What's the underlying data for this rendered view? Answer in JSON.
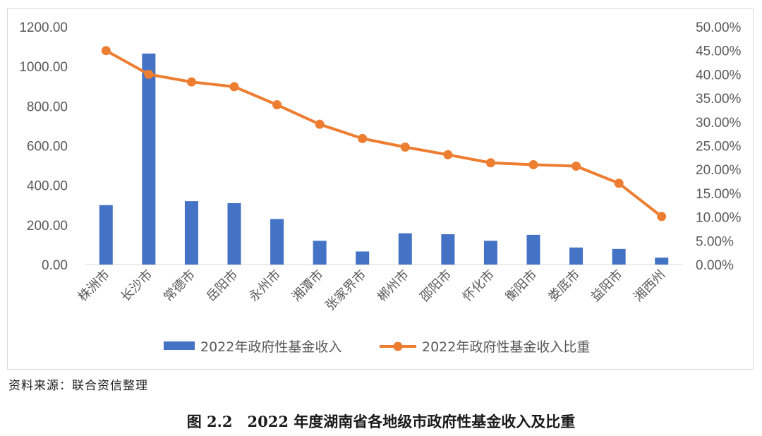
{
  "source_note": "资料来源：联合资信整理",
  "figure_caption": "图 2.2　2022 年度湖南省各地级市政府性基金收入及比重",
  "colors": {
    "bar": "#4472c4",
    "line": "#ed7d31",
    "grid": "#d9d9d9"
  },
  "chart_data": {
    "type": "bar",
    "title": "",
    "categories": [
      "株洲市",
      "长沙市",
      "常德市",
      "岳阳市",
      "永州市",
      "湘潭市",
      "张家界市",
      "郴州市",
      "邵阳市",
      "怀化市",
      "衡阳市",
      "娄底市",
      "益阳市",
      "湘西州"
    ],
    "series": [
      {
        "name": "2022年政府性基金收入",
        "type": "bar",
        "axis": "left",
        "values": [
          300,
          1065,
          320,
          310,
          230,
          120,
          66,
          158,
          153,
          120,
          150,
          86,
          79,
          35
        ]
      },
      {
        "name": "2022年政府性基金收入比重",
        "type": "line",
        "axis": "right",
        "values": [
          45.0,
          40.0,
          38.4,
          37.4,
          33.6,
          29.5,
          26.5,
          24.7,
          23.1,
          21.4,
          21.0,
          20.7,
          17.1,
          10.1
        ]
      }
    ],
    "y_left": {
      "min": 0,
      "max": 1200,
      "step": 200,
      "ticks": [
        "0.00",
        "200.00",
        "400.00",
        "600.00",
        "800.00",
        "1000.00",
        "1200.00"
      ]
    },
    "y_right": {
      "min": 0,
      "max": 50,
      "step": 5,
      "ticks": [
        "0.00%",
        "5.00%",
        "10.00%",
        "15.00%",
        "20.00%",
        "25.00%",
        "30.00%",
        "35.00%",
        "40.00%",
        "45.00%",
        "50.00%"
      ]
    },
    "grid": false,
    "legend": {
      "position": "bottom",
      "entries": [
        "2022年政府性基金收入",
        "2022年政府性基金收入比重"
      ]
    }
  }
}
